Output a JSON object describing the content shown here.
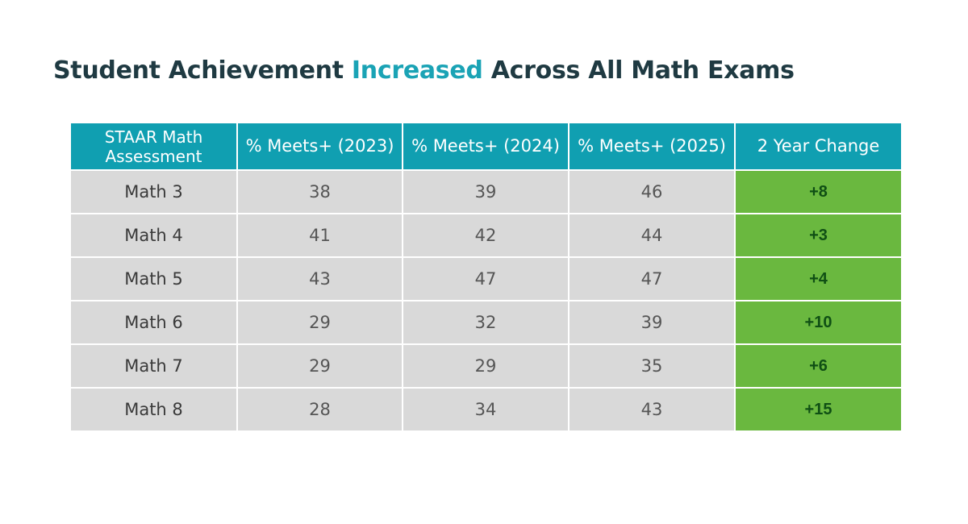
{
  "title": {
    "before": "Student Achievement ",
    "highlight": "Increased",
    "after": " Across All Math Exams"
  },
  "colors": {
    "title": "#1f3a42",
    "highlight": "#1aa3b5",
    "header_bg": "#109fb1",
    "row_bg": "#d9d9d9",
    "change_bg": "#6ab83f",
    "change_text": "#0f4f14"
  },
  "table": {
    "headers": [
      "STAAR Math Assessment",
      "% Meets+ (2023)",
      "% Meets+ (2024)",
      "% Meets+ (2025)",
      "2 Year Change"
    ],
    "rows": [
      {
        "assessment": "Math 3",
        "y2023": "38",
        "y2024": "39",
        "y2025": "46",
        "change": "+8"
      },
      {
        "assessment": "Math 4",
        "y2023": "41",
        "y2024": "42",
        "y2025": "44",
        "change": "+3"
      },
      {
        "assessment": "Math 5",
        "y2023": "43",
        "y2024": "47",
        "y2025": "47",
        "change": "+4"
      },
      {
        "assessment": "Math 6",
        "y2023": "29",
        "y2024": "32",
        "y2025": "39",
        "change": "+10"
      },
      {
        "assessment": "Math 7",
        "y2023": "29",
        "y2024": "29",
        "y2025": "35",
        "change": "+6"
      },
      {
        "assessment": "Math 8",
        "y2023": "28",
        "y2024": "34",
        "y2025": "43",
        "change": "+15"
      }
    ]
  }
}
